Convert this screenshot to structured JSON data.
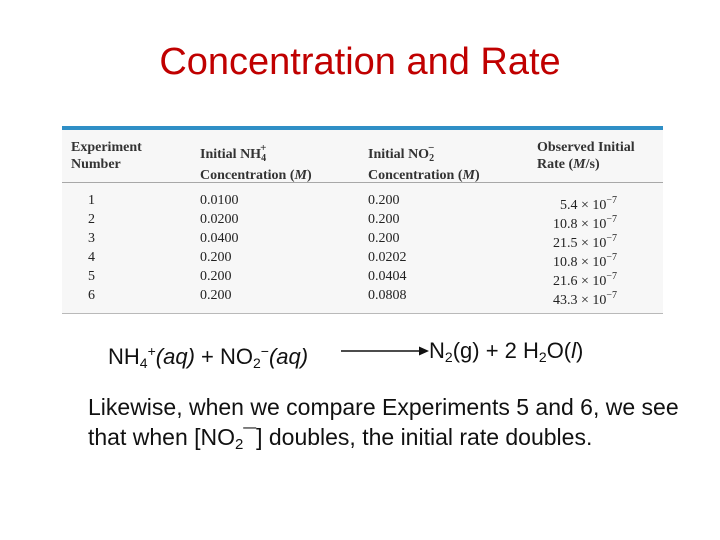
{
  "title": "Concentration and Rate",
  "table": {
    "headers": {
      "experiment": [
        "Experiment",
        "Number"
      ],
      "nh4": {
        "line1": "Initial NH",
        "sub": "4",
        "sup": "+",
        "line2": "Concentration (",
        "unit": "M",
        "close": ")"
      },
      "no2": {
        "line1": "Initial NO",
        "sub": "2",
        "sup": "−",
        "line2": "Concentration (",
        "unit": "M",
        "close": ")"
      },
      "rate": {
        "line1": "Observed Initial",
        "line2": "Rate (",
        "unit": "M",
        "slash": "/s)"
      }
    },
    "rows": [
      {
        "exp": "1",
        "nh4": "0.0100",
        "no2": "0.200",
        "rate": "5.4 × 10",
        "rate_exp": "−7"
      },
      {
        "exp": "2",
        "nh4": "0.0200",
        "no2": "0.200",
        "rate": "10.8 × 10",
        "rate_exp": "−7"
      },
      {
        "exp": "3",
        "nh4": "0.0400",
        "no2": "0.200",
        "rate": "21.5 × 10",
        "rate_exp": "−7"
      },
      {
        "exp": "4",
        "nh4": "0.200",
        "no2": "0.0202",
        "rate": "10.8 × 10",
        "rate_exp": "−7"
      },
      {
        "exp": "5",
        "nh4": "0.200",
        "no2": "0.0404",
        "rate": "21.6 × 10",
        "rate_exp": "−7"
      },
      {
        "exp": "6",
        "nh4": "0.200",
        "no2": "0.0808",
        "rate": "43.3 × 10",
        "rate_exp": "−7"
      }
    ]
  },
  "equation": {
    "reactant1": "NH",
    "reactant1_sub": "4",
    "reactant1_sup": "+",
    "reactant1_state": "(aq)",
    "plus1": " + ",
    "reactant2": "NO",
    "reactant2_sub": "2",
    "reactant2_sup": "−",
    "reactant2_state": "(aq)",
    "product1": "N",
    "product1_sub": "2",
    "product1_state": "(g)",
    "plus2": " + 2 ",
    "product2": "H",
    "product2_sub": "2",
    "product2_tail": "O(",
    "product2_state": "l",
    "product2_close": ")"
  },
  "body": {
    "part1": "Likewise, when we compare Experiments 5 and 6, we see that when [NO",
    "sub": "2",
    "part2": "¯] doubles, the initial rate doubles."
  },
  "colors": {
    "title": "#c00000",
    "table_rule": "#2f8fc6"
  }
}
